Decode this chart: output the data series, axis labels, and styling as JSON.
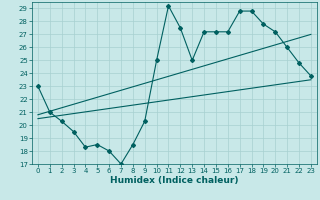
{
  "title": "",
  "xlabel": "Humidex (Indice chaleur)",
  "bg_color": "#c8e8e8",
  "line_color": "#006060",
  "grid_color": "#a8d0d0",
  "xlim": [
    -0.5,
    23.5
  ],
  "ylim": [
    17,
    29.5
  ],
  "yticks": [
    17,
    18,
    19,
    20,
    21,
    22,
    23,
    24,
    25,
    26,
    27,
    28,
    29
  ],
  "xticks": [
    0,
    1,
    2,
    3,
    4,
    5,
    6,
    7,
    8,
    9,
    10,
    11,
    12,
    13,
    14,
    15,
    16,
    17,
    18,
    19,
    20,
    21,
    22,
    23
  ],
  "data_x": [
    0,
    1,
    2,
    3,
    4,
    5,
    6,
    7,
    8,
    9,
    10,
    11,
    12,
    13,
    14,
    15,
    16,
    17,
    18,
    19,
    20,
    21,
    22,
    23
  ],
  "data_y": [
    23,
    21,
    20.3,
    19.5,
    18.3,
    18.5,
    18.0,
    17.0,
    18.5,
    20.3,
    25.0,
    29.2,
    27.5,
    25.0,
    27.2,
    27.2,
    27.2,
    28.8,
    28.8,
    27.8,
    27.2,
    26.0,
    24.8,
    23.8
  ],
  "trend1_x": [
    0,
    23
  ],
  "trend1_y": [
    20.5,
    23.5
  ],
  "trend2_x": [
    0,
    23
  ],
  "trend2_y": [
    20.8,
    27.0
  ],
  "tick_fontsize": 5.0,
  "xlabel_fontsize": 6.5
}
